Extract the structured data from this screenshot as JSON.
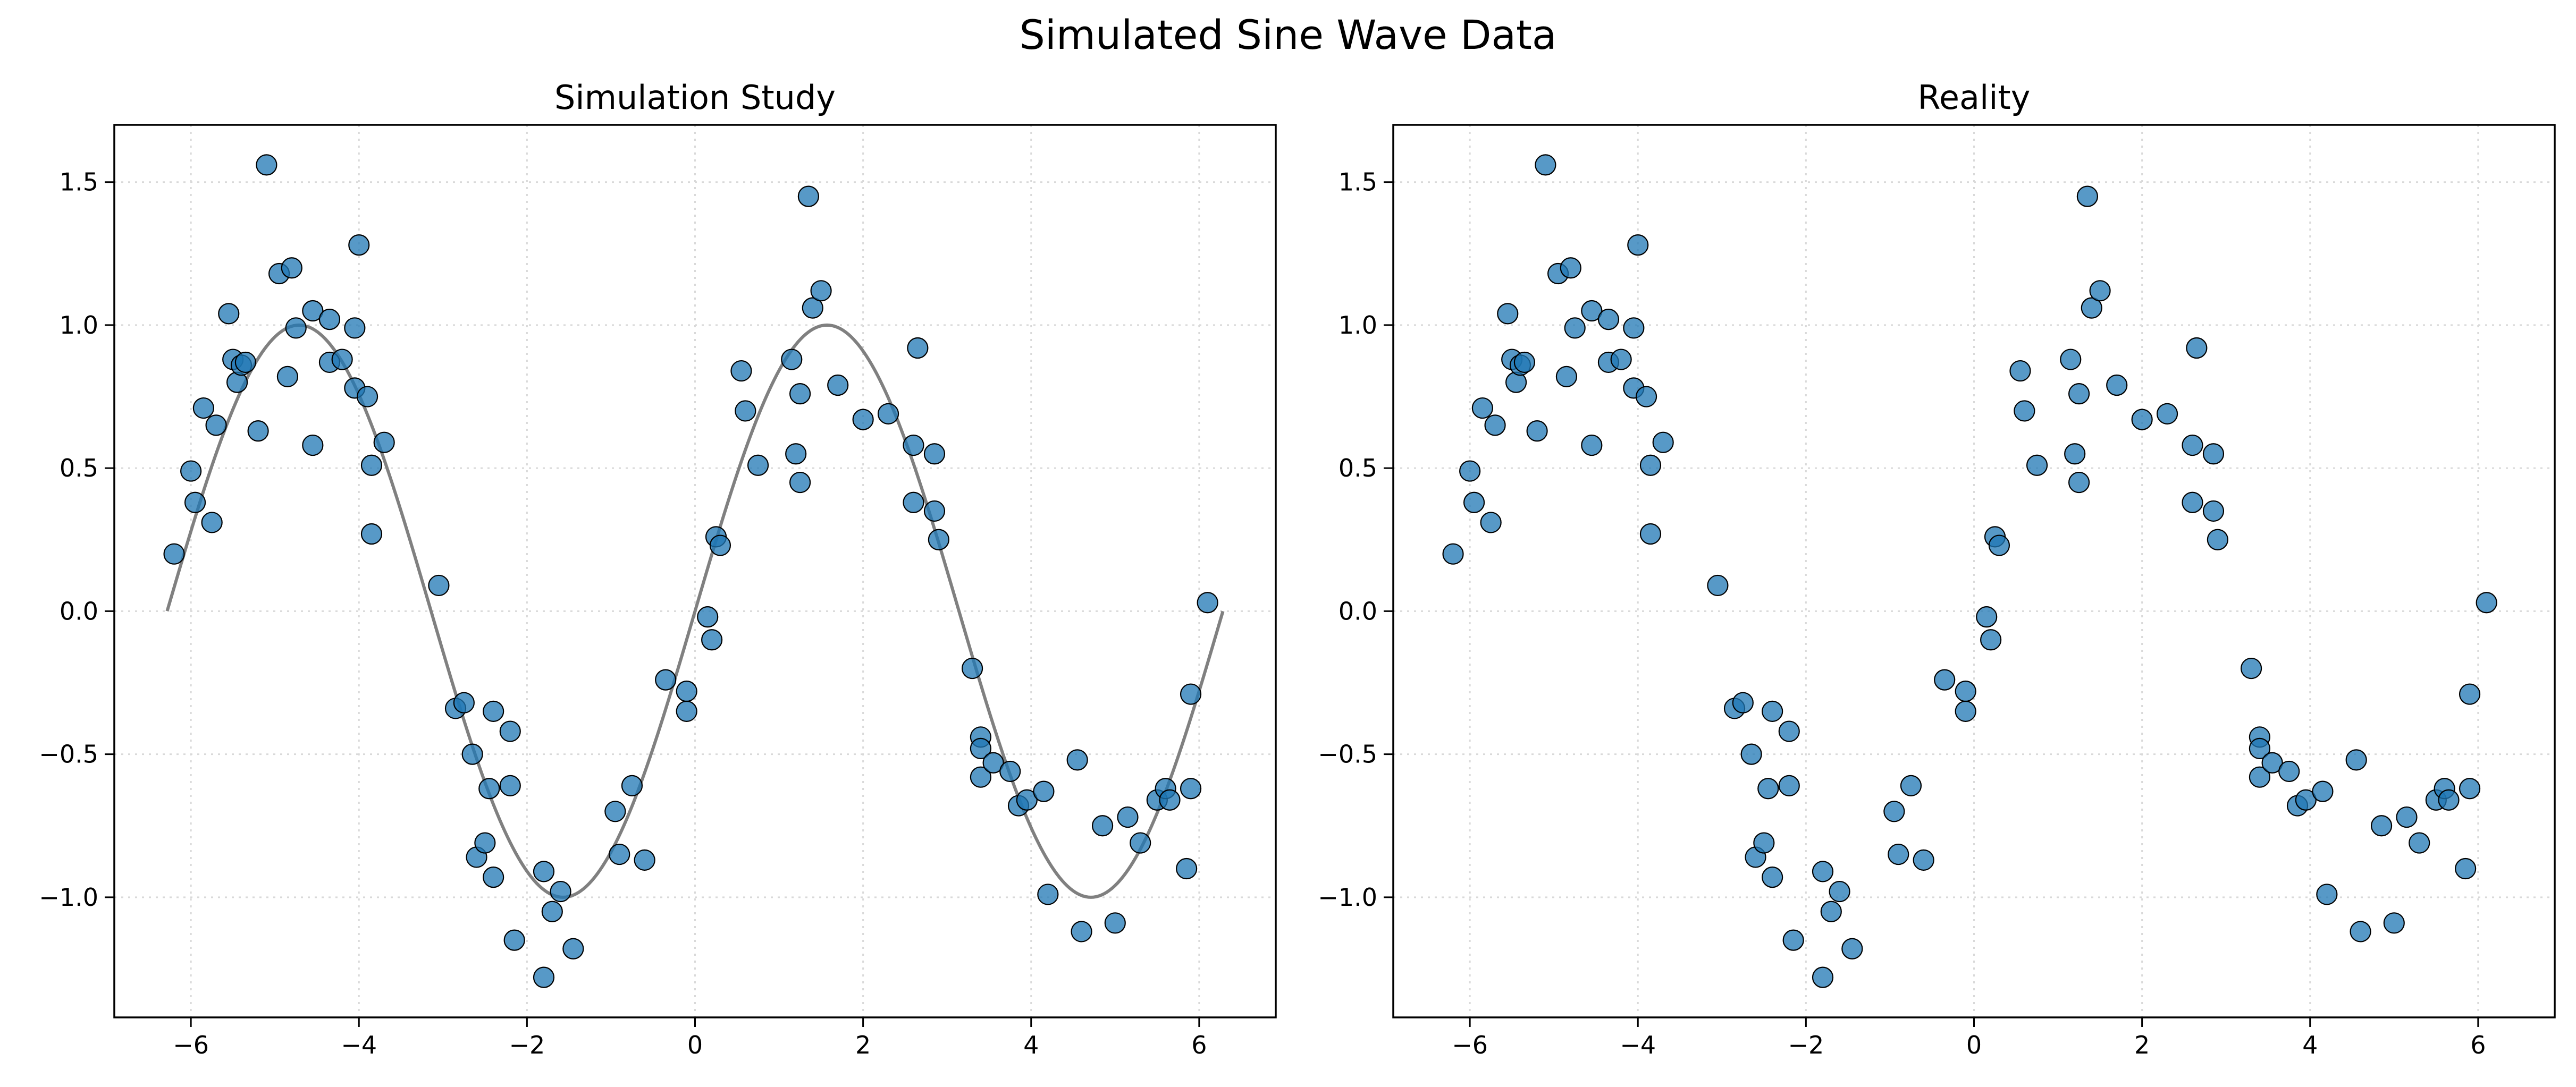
{
  "figure": {
    "suptitle": "Simulated Sine Wave Data"
  },
  "style": {
    "point_color": "#1f77b4",
    "point_edge_color": "#000000",
    "curve_color": "#808080",
    "grid_color": "#d9d9d9",
    "axes_color": "#000000"
  },
  "chart_data": [
    {
      "type": "scatter",
      "title": "Simulation Study",
      "xlabel": "",
      "ylabel": "",
      "xlim": [
        -6.912,
        6.912
      ],
      "ylim": [
        -1.42,
        1.7
      ],
      "xticks": [
        -6,
        -4,
        -2,
        0,
        2,
        4,
        6
      ],
      "yticks": [
        -1.0,
        -0.5,
        0.0,
        0.5,
        1.0,
        1.5
      ],
      "xtick_labels": [
        "−6",
        "−4",
        "−2",
        "0",
        "2",
        "4",
        "6"
      ],
      "ytick_labels": [
        "−1.0",
        "−0.5",
        "0.0",
        "0.5",
        "1.0",
        "1.5"
      ],
      "grid": true,
      "curve": {
        "function": "sin(x)",
        "x_range": [
          -6.283,
          6.283
        ]
      },
      "points": [
        [
          -6.2,
          0.2
        ],
        [
          -6.0,
          0.49
        ],
        [
          -5.95,
          0.38
        ],
        [
          -5.85,
          0.71
        ],
        [
          -5.75,
          0.31
        ],
        [
          -5.7,
          0.65
        ],
        [
          -5.55,
          1.04
        ],
        [
          -5.5,
          0.88
        ],
        [
          -5.45,
          0.8
        ],
        [
          -5.4,
          0.86
        ],
        [
          -5.35,
          0.87
        ],
        [
          -5.2,
          0.63
        ],
        [
          -5.1,
          1.56
        ],
        [
          -4.95,
          1.18
        ],
        [
          -4.85,
          0.82
        ],
        [
          -4.8,
          1.2
        ],
        [
          -4.75,
          0.99
        ],
        [
          -4.55,
          0.58
        ],
        [
          -4.55,
          1.05
        ],
        [
          -4.35,
          0.87
        ],
        [
          -4.35,
          1.02
        ],
        [
          -4.2,
          0.88
        ],
        [
          -4.05,
          0.78
        ],
        [
          -4.05,
          0.99
        ],
        [
          -4.0,
          1.28
        ],
        [
          -3.9,
          0.75
        ],
        [
          -3.85,
          0.51
        ],
        [
          -3.85,
          0.27
        ],
        [
          -3.7,
          0.59
        ],
        [
          -3.05,
          0.09
        ],
        [
          -2.85,
          -0.34
        ],
        [
          -2.75,
          -0.32
        ],
        [
          -2.65,
          -0.5
        ],
        [
          -2.6,
          -0.86
        ],
        [
          -2.5,
          -0.81
        ],
        [
          -2.45,
          -0.62
        ],
        [
          -2.4,
          -0.93
        ],
        [
          -2.4,
          -0.35
        ],
        [
          -2.2,
          -0.42
        ],
        [
          -2.2,
          -0.61
        ],
        [
          -2.15,
          -1.15
        ],
        [
          -1.8,
          -1.28
        ],
        [
          -1.8,
          -0.91
        ],
        [
          -1.7,
          -1.05
        ],
        [
          -1.6,
          -0.98
        ],
        [
          -1.45,
          -1.18
        ],
        [
          -0.95,
          -0.7
        ],
        [
          -0.9,
          -0.85
        ],
        [
          -0.75,
          -0.61
        ],
        [
          -0.6,
          -0.87
        ],
        [
          -0.35,
          -0.24
        ],
        [
          -0.1,
          -0.28
        ],
        [
          -0.1,
          -0.35
        ],
        [
          0.15,
          -0.02
        ],
        [
          0.2,
          -0.1
        ],
        [
          0.25,
          0.26
        ],
        [
          0.3,
          0.23
        ],
        [
          0.55,
          0.84
        ],
        [
          0.6,
          0.7
        ],
        [
          0.75,
          0.51
        ],
        [
          1.15,
          0.88
        ],
        [
          1.2,
          0.55
        ],
        [
          1.25,
          0.45
        ],
        [
          1.25,
          0.76
        ],
        [
          1.35,
          1.45
        ],
        [
          1.4,
          1.06
        ],
        [
          1.5,
          1.12
        ],
        [
          1.7,
          0.79
        ],
        [
          2.0,
          0.67
        ],
        [
          2.3,
          0.69
        ],
        [
          2.6,
          0.58
        ],
        [
          2.6,
          0.38
        ],
        [
          2.65,
          0.92
        ],
        [
          2.85,
          0.35
        ],
        [
          2.85,
          0.55
        ],
        [
          2.9,
          0.25
        ],
        [
          3.3,
          -0.2
        ],
        [
          3.4,
          -0.44
        ],
        [
          3.4,
          -0.48
        ],
        [
          3.4,
          -0.58
        ],
        [
          3.55,
          -0.53
        ],
        [
          3.75,
          -0.56
        ],
        [
          3.85,
          -0.68
        ],
        [
          3.95,
          -0.66
        ],
        [
          4.15,
          -0.63
        ],
        [
          4.2,
          -0.99
        ],
        [
          4.55,
          -0.52
        ],
        [
          4.6,
          -1.12
        ],
        [
          4.85,
          -0.75
        ],
        [
          5.0,
          -1.09
        ],
        [
          5.15,
          -0.72
        ],
        [
          5.3,
          -0.81
        ],
        [
          5.5,
          -0.66
        ],
        [
          5.6,
          -0.62
        ],
        [
          5.65,
          -0.66
        ],
        [
          5.85,
          -0.9
        ],
        [
          5.9,
          -0.62
        ],
        [
          5.9,
          -0.29
        ],
        [
          6.1,
          0.03
        ]
      ]
    },
    {
      "type": "scatter",
      "title": "Reality",
      "xlabel": "",
      "ylabel": "",
      "xlim": [
        -6.912,
        6.912
      ],
      "ylim": [
        -1.42,
        1.7
      ],
      "xticks": [
        -6,
        -4,
        -2,
        0,
        2,
        4,
        6
      ],
      "yticks": [
        -1.0,
        -0.5,
        0.0,
        0.5,
        1.0,
        1.5
      ],
      "xtick_labels": [
        "−6",
        "−4",
        "−2",
        "0",
        "2",
        "4",
        "6"
      ],
      "ytick_labels": [
        "−1.0",
        "−0.5",
        "0.0",
        "0.5",
        "1.0",
        "1.5"
      ],
      "grid": true,
      "points": [
        [
          -6.2,
          0.2
        ],
        [
          -6.0,
          0.49
        ],
        [
          -5.95,
          0.38
        ],
        [
          -5.85,
          0.71
        ],
        [
          -5.75,
          0.31
        ],
        [
          -5.7,
          0.65
        ],
        [
          -5.55,
          1.04
        ],
        [
          -5.5,
          0.88
        ],
        [
          -5.45,
          0.8
        ],
        [
          -5.4,
          0.86
        ],
        [
          -5.35,
          0.87
        ],
        [
          -5.2,
          0.63
        ],
        [
          -5.1,
          1.56
        ],
        [
          -4.95,
          1.18
        ],
        [
          -4.85,
          0.82
        ],
        [
          -4.8,
          1.2
        ],
        [
          -4.75,
          0.99
        ],
        [
          -4.55,
          0.58
        ],
        [
          -4.55,
          1.05
        ],
        [
          -4.35,
          0.87
        ],
        [
          -4.35,
          1.02
        ],
        [
          -4.2,
          0.88
        ],
        [
          -4.05,
          0.78
        ],
        [
          -4.05,
          0.99
        ],
        [
          -4.0,
          1.28
        ],
        [
          -3.9,
          0.75
        ],
        [
          -3.85,
          0.51
        ],
        [
          -3.85,
          0.27
        ],
        [
          -3.7,
          0.59
        ],
        [
          -3.05,
          0.09
        ],
        [
          -2.85,
          -0.34
        ],
        [
          -2.75,
          -0.32
        ],
        [
          -2.65,
          -0.5
        ],
        [
          -2.6,
          -0.86
        ],
        [
          -2.5,
          -0.81
        ],
        [
          -2.45,
          -0.62
        ],
        [
          -2.4,
          -0.93
        ],
        [
          -2.4,
          -0.35
        ],
        [
          -2.2,
          -0.42
        ],
        [
          -2.2,
          -0.61
        ],
        [
          -2.15,
          -1.15
        ],
        [
          -1.8,
          -1.28
        ],
        [
          -1.8,
          -0.91
        ],
        [
          -1.7,
          -1.05
        ],
        [
          -1.6,
          -0.98
        ],
        [
          -1.45,
          -1.18
        ],
        [
          -0.95,
          -0.7
        ],
        [
          -0.9,
          -0.85
        ],
        [
          -0.75,
          -0.61
        ],
        [
          -0.6,
          -0.87
        ],
        [
          -0.35,
          -0.24
        ],
        [
          -0.1,
          -0.28
        ],
        [
          -0.1,
          -0.35
        ],
        [
          0.15,
          -0.02
        ],
        [
          0.2,
          -0.1
        ],
        [
          0.25,
          0.26
        ],
        [
          0.3,
          0.23
        ],
        [
          0.55,
          0.84
        ],
        [
          0.6,
          0.7
        ],
        [
          0.75,
          0.51
        ],
        [
          1.15,
          0.88
        ],
        [
          1.2,
          0.55
        ],
        [
          1.25,
          0.45
        ],
        [
          1.25,
          0.76
        ],
        [
          1.35,
          1.45
        ],
        [
          1.4,
          1.06
        ],
        [
          1.5,
          1.12
        ],
        [
          1.7,
          0.79
        ],
        [
          2.0,
          0.67
        ],
        [
          2.3,
          0.69
        ],
        [
          2.6,
          0.58
        ],
        [
          2.6,
          0.38
        ],
        [
          2.65,
          0.92
        ],
        [
          2.85,
          0.35
        ],
        [
          2.85,
          0.55
        ],
        [
          2.9,
          0.25
        ],
        [
          3.3,
          -0.2
        ],
        [
          3.4,
          -0.44
        ],
        [
          3.4,
          -0.48
        ],
        [
          3.4,
          -0.58
        ],
        [
          3.55,
          -0.53
        ],
        [
          3.75,
          -0.56
        ],
        [
          3.85,
          -0.68
        ],
        [
          3.95,
          -0.66
        ],
        [
          4.15,
          -0.63
        ],
        [
          4.2,
          -0.99
        ],
        [
          4.55,
          -0.52
        ],
        [
          4.6,
          -1.12
        ],
        [
          4.85,
          -0.75
        ],
        [
          5.0,
          -1.09
        ],
        [
          5.15,
          -0.72
        ],
        [
          5.3,
          -0.81
        ],
        [
          5.5,
          -0.66
        ],
        [
          5.6,
          -0.62
        ],
        [
          5.65,
          -0.66
        ],
        [
          5.85,
          -0.9
        ],
        [
          5.9,
          -0.62
        ],
        [
          5.9,
          -0.29
        ],
        [
          6.1,
          0.03
        ]
      ]
    }
  ]
}
